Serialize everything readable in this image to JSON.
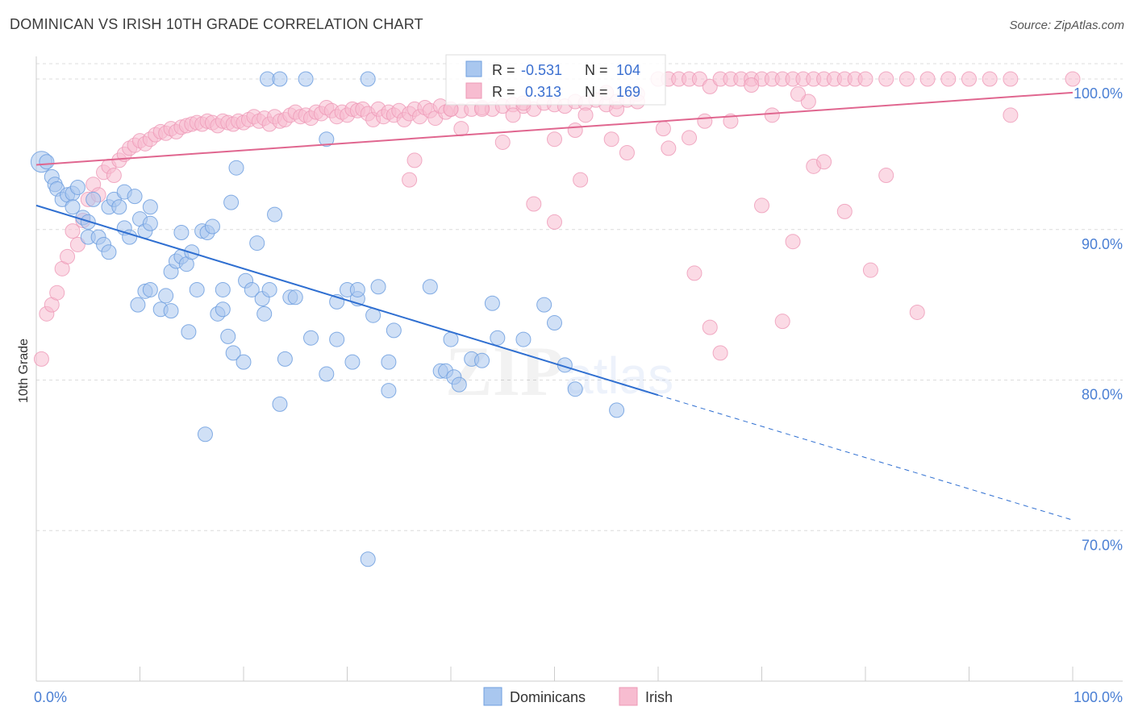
{
  "title": "DOMINICAN VS IRISH 10TH GRADE CORRELATION CHART",
  "source": "Source: ZipAtlas.com",
  "watermark": {
    "zip": "ZIP",
    "atlas": "atlas"
  },
  "legend": {
    "rows": [
      {
        "r_label": "R =",
        "r_value": "-0.531",
        "n_label": "N =",
        "n_value": "104"
      },
      {
        "r_label": "R =",
        "r_value": " 0.313",
        "n_label": "N =",
        "n_value": "169"
      }
    ]
  },
  "bottom_legend": [
    "Dominicans",
    "Irish"
  ],
  "colors": {
    "blue_fill": "#a9c7ef",
    "blue_stroke": "#6f9fdf",
    "blue_line": "#2f6fd1",
    "pink_fill": "#f7bcd0",
    "pink_stroke": "#ee98b6",
    "pink_line": "#e0668f",
    "grid": "#dcdcdc",
    "tick_text": "#4a7fd4"
  },
  "chart_data": {
    "type": "scatter",
    "title": "DOMINICAN VS IRISH 10TH GRADE CORRELATION CHART",
    "xlabel": "",
    "ylabel": "10th Grade",
    "xlim": [
      0,
      100
    ],
    "ylim": [
      60,
      101.5
    ],
    "x_tick_labels": [
      "0.0%",
      "100.0%"
    ],
    "y_ticks": [
      70,
      80,
      90,
      100
    ],
    "y_tick_labels": [
      "70.0%",
      "80.0%",
      "90.0%",
      "100.0%"
    ],
    "grid": true,
    "legend_position": "top-center",
    "series": [
      {
        "name": "Dominicans",
        "R": -0.531,
        "N": 104,
        "trend": {
          "x0": 0,
          "y0": 91.6,
          "x1": 60,
          "y1": 79.0,
          "dashed_to_x": 100,
          "dashed_to_y": 70.7
        },
        "points": [
          [
            0.5,
            94.5
          ],
          [
            1,
            94.5
          ],
          [
            1.5,
            93.5
          ],
          [
            1.8,
            93
          ],
          [
            2,
            92.7
          ],
          [
            2.5,
            92
          ],
          [
            3,
            92.3
          ],
          [
            3.5,
            92.4
          ],
          [
            3.5,
            91.5
          ],
          [
            4,
            92.8
          ],
          [
            4.5,
            90.8
          ],
          [
            5,
            89.5
          ],
          [
            5,
            90.5
          ],
          [
            5.5,
            92
          ],
          [
            6,
            89.5
          ],
          [
            6.5,
            89
          ],
          [
            7,
            91.5
          ],
          [
            7,
            88.5
          ],
          [
            7.5,
            92
          ],
          [
            8,
            91.5
          ],
          [
            8.5,
            90.1
          ],
          [
            8.5,
            92.5
          ],
          [
            9,
            89.5
          ],
          [
            9.5,
            92.2
          ],
          [
            10,
            90.7
          ],
          [
            10.5,
            89.9
          ],
          [
            11,
            91.5
          ],
          [
            11,
            90.4
          ],
          [
            9.8,
            85
          ],
          [
            10.5,
            85.9
          ],
          [
            11,
            86
          ],
          [
            12,
            84.7
          ],
          [
            12.5,
            85.6
          ],
          [
            13,
            84.6
          ],
          [
            13,
            87.2
          ],
          [
            13.5,
            87.9
          ],
          [
            14,
            89.8
          ],
          [
            14,
            88.2
          ],
          [
            14.5,
            87.7
          ],
          [
            14.7,
            83.2
          ],
          [
            15,
            88.5
          ],
          [
            15.5,
            86
          ],
          [
            16,
            89.9
          ],
          [
            16.5,
            89.8
          ],
          [
            16.3,
            76.4
          ],
          [
            17,
            90.2
          ],
          [
            17.5,
            84.4
          ],
          [
            18,
            86
          ],
          [
            18,
            84.7
          ],
          [
            18.5,
            82.9
          ],
          [
            18.8,
            91.8
          ],
          [
            19,
            81.8
          ],
          [
            19.3,
            94.1
          ],
          [
            20,
            81.2
          ],
          [
            20.2,
            86.6
          ],
          [
            20.8,
            86
          ],
          [
            21.3,
            89.1
          ],
          [
            21.8,
            85.4
          ],
          [
            22,
            84.4
          ],
          [
            22.3,
            100
          ],
          [
            22.5,
            86
          ],
          [
            23,
            91
          ],
          [
            23.5,
            100
          ],
          [
            23.5,
            78.4
          ],
          [
            24,
            81.4
          ],
          [
            24.5,
            85.5
          ],
          [
            25,
            85.5
          ],
          [
            26,
            100
          ],
          [
            26.5,
            82.8
          ],
          [
            28,
            96
          ],
          [
            28,
            80.4
          ],
          [
            29,
            82.7
          ],
          [
            29,
            85.2
          ],
          [
            30,
            86
          ],
          [
            30.5,
            81.2
          ],
          [
            31,
            85.4
          ],
          [
            31,
            86
          ],
          [
            32,
            100
          ],
          [
            32.5,
            84.3
          ],
          [
            33,
            86.2
          ],
          [
            34,
            79.3
          ],
          [
            34,
            81.2
          ],
          [
            34.5,
            83.3
          ],
          [
            38,
            86.2
          ],
          [
            39,
            80.6
          ],
          [
            39.5,
            80.6
          ],
          [
            40,
            82.7
          ],
          [
            40.3,
            80.2
          ],
          [
            40.8,
            79.7
          ],
          [
            42,
            81.4
          ],
          [
            43,
            81.3
          ],
          [
            44,
            85.1
          ],
          [
            44.5,
            82.8
          ],
          [
            47,
            82.7
          ],
          [
            49,
            85
          ],
          [
            50,
            83.8
          ],
          [
            51,
            81
          ],
          [
            52,
            79.4
          ],
          [
            56,
            78
          ],
          [
            32,
            68.1
          ]
        ]
      },
      {
        "name": "Irish",
        "R": 0.313,
        "N": 169,
        "trend": {
          "x0": 0,
          "y0": 94.3,
          "x1": 100,
          "y1": 99.1
        },
        "points": [
          [
            0.5,
            81.4
          ],
          [
            1,
            84.4
          ],
          [
            1.5,
            85
          ],
          [
            2,
            85.8
          ],
          [
            2.5,
            87.4
          ],
          [
            3,
            88.2
          ],
          [
            3.5,
            89.9
          ],
          [
            4,
            89
          ],
          [
            4.5,
            90.6
          ],
          [
            5,
            92
          ],
          [
            5.5,
            93
          ],
          [
            6,
            92.3
          ],
          [
            6.5,
            93.8
          ],
          [
            7,
            94.2
          ],
          [
            7.5,
            93.6
          ],
          [
            8,
            94.6
          ],
          [
            8.5,
            95
          ],
          [
            9,
            95.4
          ],
          [
            9.5,
            95.6
          ],
          [
            10,
            95.9
          ],
          [
            10.5,
            95.7
          ],
          [
            11,
            96
          ],
          [
            11.5,
            96.3
          ],
          [
            12,
            96.5
          ],
          [
            12.5,
            96.4
          ],
          [
            13,
            96.7
          ],
          [
            13.5,
            96.5
          ],
          [
            14,
            96.8
          ],
          [
            14.5,
            96.9
          ],
          [
            15,
            97
          ],
          [
            15.5,
            97.1
          ],
          [
            16,
            97
          ],
          [
            16.5,
            97.2
          ],
          [
            17,
            97.1
          ],
          [
            17.5,
            96.9
          ],
          [
            18,
            97.2
          ],
          [
            18.5,
            97.1
          ],
          [
            19,
            97
          ],
          [
            19.5,
            97.2
          ],
          [
            20,
            97.1
          ],
          [
            20.5,
            97.3
          ],
          [
            21,
            97.5
          ],
          [
            21.5,
            97.2
          ],
          [
            22,
            97.4
          ],
          [
            22.5,
            97
          ],
          [
            23,
            97.5
          ],
          [
            23.5,
            97.2
          ],
          [
            24,
            97.3
          ],
          [
            24.5,
            97.6
          ],
          [
            25,
            97.8
          ],
          [
            25.5,
            97.5
          ],
          [
            26,
            97.6
          ],
          [
            26.5,
            97.4
          ],
          [
            27,
            97.8
          ],
          [
            27.5,
            97.7
          ],
          [
            28,
            98.1
          ],
          [
            28.5,
            97.9
          ],
          [
            29,
            97.5
          ],
          [
            29.5,
            97.8
          ],
          [
            30,
            97.6
          ],
          [
            30.5,
            98
          ],
          [
            31,
            97.9
          ],
          [
            31.5,
            98
          ],
          [
            32,
            97.7
          ],
          [
            32.5,
            97.3
          ],
          [
            33,
            98
          ],
          [
            33.5,
            97.5
          ],
          [
            34,
            97.8
          ],
          [
            34.5,
            97.6
          ],
          [
            35,
            97.9
          ],
          [
            35.5,
            97.3
          ],
          [
            36,
            97.7
          ],
          [
            36.5,
            98
          ],
          [
            37,
            97.5
          ],
          [
            37.5,
            98.1
          ],
          [
            38,
            97.9
          ],
          [
            38.5,
            97.4
          ],
          [
            39,
            98.2
          ],
          [
            39.5,
            97.8
          ],
          [
            40,
            98
          ],
          [
            41,
            97.9
          ],
          [
            42,
            98
          ],
          [
            43,
            98.1
          ],
          [
            44,
            98
          ],
          [
            45,
            98.2
          ],
          [
            46,
            98.3
          ],
          [
            47,
            98.2
          ],
          [
            48,
            98
          ],
          [
            49,
            98.4
          ],
          [
            50,
            98.3
          ],
          [
            51,
            98.2
          ],
          [
            52,
            98.5
          ],
          [
            53,
            98.4
          ],
          [
            54,
            98.6
          ],
          [
            55,
            98.3
          ],
          [
            56,
            98.5
          ],
          [
            57,
            98.6
          ],
          [
            58,
            99
          ],
          [
            60,
            100
          ],
          [
            61,
            100
          ],
          [
            62,
            100
          ],
          [
            63,
            100
          ],
          [
            64,
            100
          ],
          [
            65,
            99.5
          ],
          [
            66,
            100
          ],
          [
            67,
            100
          ],
          [
            68,
            100
          ],
          [
            69,
            100
          ],
          [
            70,
            100
          ],
          [
            71,
            100
          ],
          [
            72,
            100
          ],
          [
            73,
            100
          ],
          [
            74,
            100
          ],
          [
            75,
            100
          ],
          [
            76,
            100
          ],
          [
            77,
            100
          ],
          [
            78,
            100
          ],
          [
            79,
            100
          ],
          [
            80,
            100
          ],
          [
            82,
            100
          ],
          [
            84,
            100
          ],
          [
            86,
            100
          ],
          [
            88,
            100
          ],
          [
            90,
            100
          ],
          [
            92,
            100
          ],
          [
            94,
            100
          ],
          [
            100,
            100
          ],
          [
            36,
            93.3
          ],
          [
            36.5,
            94.6
          ],
          [
            40,
            98
          ],
          [
            45,
            95.8
          ],
          [
            50,
            96
          ],
          [
            52.5,
            93.3
          ],
          [
            55.5,
            96
          ],
          [
            57,
            95.1
          ],
          [
            60.5,
            96.7
          ],
          [
            61,
            95.4
          ],
          [
            63,
            96.1
          ],
          [
            64.5,
            97.2
          ],
          [
            67,
            97.2
          ],
          [
            69,
            99.6
          ],
          [
            71,
            97.6
          ],
          [
            73,
            89.2
          ],
          [
            74.5,
            98.5
          ],
          [
            75,
            94.2
          ],
          [
            76,
            94.5
          ],
          [
            78,
            91.2
          ],
          [
            80.5,
            87.3
          ],
          [
            82,
            93.6
          ],
          [
            94,
            97.6
          ],
          [
            50,
            90.5
          ],
          [
            48,
            91.7
          ],
          [
            52,
            96.6
          ],
          [
            53,
            97.6
          ],
          [
            55,
            99.1
          ],
          [
            56,
            98
          ],
          [
            58,
            98.5
          ],
          [
            46,
            97.6
          ],
          [
            41,
            96.7
          ],
          [
            43,
            98
          ],
          [
            47,
            98.4
          ],
          [
            70,
            91.6
          ],
          [
            63.5,
            87.1
          ],
          [
            65,
            83.5
          ],
          [
            66,
            81.8
          ],
          [
            72,
            83.9
          ],
          [
            73.5,
            99
          ],
          [
            85,
            84.5
          ]
        ]
      }
    ]
  }
}
